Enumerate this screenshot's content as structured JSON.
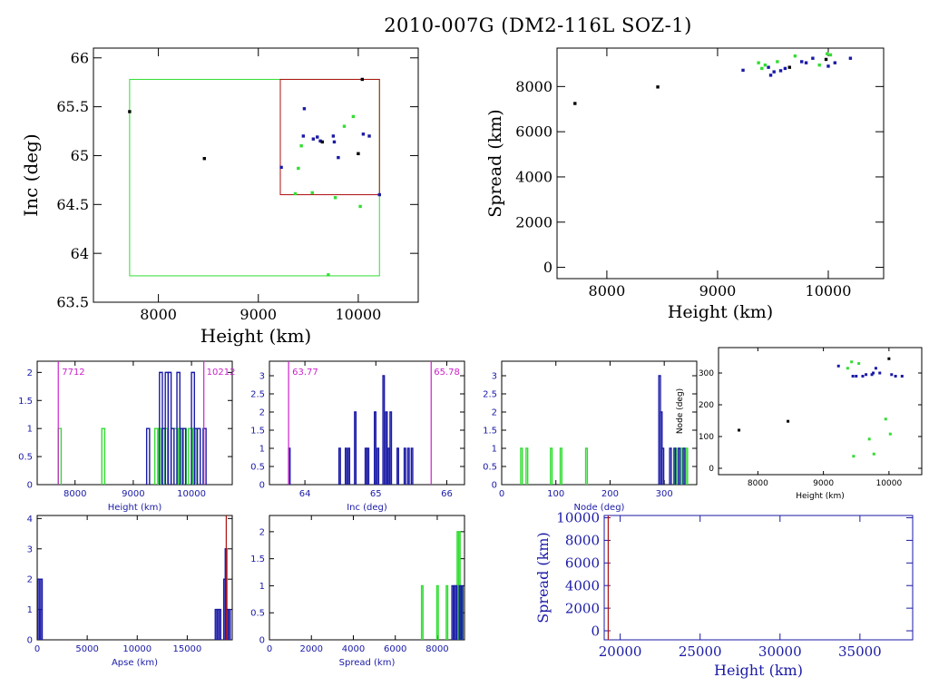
{
  "title": "2010-007G (DM2-116L SOZ-1)",
  "colors": {
    "black": "#000000",
    "blue": "#1a1aa6",
    "green": "#33dd33",
    "red": "#b01010",
    "magenta": "#cc22cc"
  },
  "chart_data": [
    {
      "id": "inc-vs-height",
      "type": "scatter",
      "xlabel": "Height (km)",
      "ylabel": "Inc (deg)",
      "xlim": [
        7350,
        10600
      ],
      "ylim": [
        63.5,
        66.1
      ],
      "xticks": [
        8000,
        9000,
        10000
      ],
      "yticks": [
        63.5,
        64,
        64.5,
        65,
        65.5,
        66
      ],
      "boxes": [
        {
          "color": "green",
          "x": [
            7712,
            10212
          ],
          "y": [
            63.77,
            65.78
          ]
        },
        {
          "color": "red",
          "x": [
            9220,
            10212
          ],
          "y": [
            64.6,
            65.78
          ]
        }
      ],
      "points": [
        [
          7712,
          65.45,
          "black"
        ],
        [
          8460,
          64.97,
          "black"
        ],
        [
          9230,
          64.88,
          "blue"
        ],
        [
          9370,
          64.61,
          "green"
        ],
        [
          9400,
          64.87,
          "green"
        ],
        [
          9430,
          65.1,
          "green"
        ],
        [
          9450,
          65.2,
          "blue"
        ],
        [
          9460,
          65.48,
          "blue"
        ],
        [
          9540,
          64.62,
          "green"
        ],
        [
          9550,
          65.17,
          "blue"
        ],
        [
          9590,
          65.19,
          "blue"
        ],
        [
          9620,
          65.15,
          "blue"
        ],
        [
          9640,
          65.14,
          "black"
        ],
        [
          9700,
          63.78,
          "green"
        ],
        [
          9750,
          65.2,
          "blue"
        ],
        [
          9760,
          65.14,
          "blue"
        ],
        [
          9770,
          64.57,
          "green"
        ],
        [
          9800,
          64.98,
          "blue"
        ],
        [
          9860,
          65.3,
          "green"
        ],
        [
          9950,
          65.4,
          "green"
        ],
        [
          10000,
          65.02,
          "black"
        ],
        [
          10020,
          64.48,
          "green"
        ],
        [
          10040,
          65.78,
          "black"
        ],
        [
          10050,
          65.22,
          "blue"
        ],
        [
          10110,
          65.2,
          "blue"
        ],
        [
          10212,
          64.6,
          "blue"
        ]
      ]
    },
    {
      "id": "spread-vs-height",
      "type": "scatter",
      "xlabel": "Height (km)",
      "ylabel": "Spread (km)",
      "xlim": [
        7550,
        10500
      ],
      "ylim": [
        -500,
        9700
      ],
      "xticks": [
        8000,
        9000,
        10000
      ],
      "yticks": [
        0,
        2000,
        4000,
        6000,
        8000
      ],
      "points": [
        [
          7712,
          7250,
          "black"
        ],
        [
          8460,
          7980,
          "black"
        ],
        [
          9230,
          8720,
          "blue"
        ],
        [
          9370,
          9050,
          "green"
        ],
        [
          9400,
          8800,
          "green"
        ],
        [
          9430,
          8950,
          "green"
        ],
        [
          9460,
          8850,
          "blue"
        ],
        [
          9480,
          8500,
          "blue"
        ],
        [
          9510,
          8650,
          "blue"
        ],
        [
          9540,
          9100,
          "green"
        ],
        [
          9570,
          8700,
          "blue"
        ],
        [
          9610,
          8800,
          "blue"
        ],
        [
          9650,
          8850,
          "black"
        ],
        [
          9700,
          9350,
          "green"
        ],
        [
          9760,
          9100,
          "blue"
        ],
        [
          9800,
          9050,
          "blue"
        ],
        [
          9860,
          9250,
          "blue"
        ],
        [
          9920,
          8950,
          "green"
        ],
        [
          9980,
          9200,
          "black"
        ],
        [
          10000,
          8900,
          "blue"
        ],
        [
          10020,
          9400,
          "green"
        ],
        [
          10060,
          9050,
          "blue"
        ],
        [
          10200,
          9250,
          "blue"
        ],
        [
          9990,
          9450,
          "green"
        ]
      ]
    },
    {
      "id": "hist-height",
      "type": "bar",
      "xlabel": "Height (km)",
      "ylabel": "",
      "xlim": [
        7350,
        10700
      ],
      "ylim": [
        0,
        2.2
      ],
      "xticks": [
        8000,
        9000,
        10000
      ],
      "yticks": [
        0,
        0.5,
        1,
        1.5,
        2
      ],
      "bin_width": 50,
      "vlines": [
        {
          "x": 7712,
          "label": "7712",
          "color": "magenta"
        },
        {
          "x": 10212,
          "label": "10212",
          "color": "magenta"
        }
      ],
      "series": [
        {
          "color": "green",
          "bins": [
            [
              7712,
              1
            ],
            [
              8460,
              1
            ],
            [
              9370,
              1
            ],
            [
              9430,
              1
            ],
            [
              9540,
              1
            ],
            [
              9700,
              1
            ],
            [
              9770,
              1
            ],
            [
              9860,
              1
            ],
            [
              9950,
              1
            ],
            [
              10020,
              1
            ]
          ]
        },
        {
          "color": "blue",
          "bins": [
            [
              9230,
              1
            ],
            [
              9450,
              2
            ],
            [
              9500,
              1
            ],
            [
              9550,
              2
            ],
            [
              9600,
              2
            ],
            [
              9650,
              1
            ],
            [
              9750,
              2
            ],
            [
              9800,
              1
            ],
            [
              9850,
              1
            ],
            [
              10000,
              2
            ],
            [
              10050,
              1
            ],
            [
              10100,
              1
            ],
            [
              10200,
              1
            ]
          ]
        }
      ]
    },
    {
      "id": "hist-inc",
      "type": "bar",
      "xlabel": "Inc (deg)",
      "ylabel": "",
      "xlim": [
        63.5,
        66.25
      ],
      "ylim": [
        0,
        3.4
      ],
      "xticks": [
        64,
        65,
        66
      ],
      "yticks": [
        0,
        0.5,
        1,
        1.5,
        2,
        2.5,
        3
      ],
      "bin_width": 0.02,
      "vlines": [
        {
          "x": 63.77,
          "label": "63.77",
          "color": "magenta"
        },
        {
          "x": 65.78,
          "label": "65.78",
          "color": "magenta"
        }
      ],
      "series": [
        {
          "color": "blue",
          "bins": [
            [
              63.77,
              1
            ],
            [
              64.48,
              1
            ],
            [
              64.57,
              1
            ],
            [
              64.61,
              1
            ],
            [
              64.7,
              2
            ],
            [
              64.85,
              1
            ],
            [
              64.88,
              1
            ],
            [
              64.98,
              2
            ],
            [
              65.02,
              1
            ],
            [
              65.1,
              3
            ],
            [
              65.14,
              2
            ],
            [
              65.17,
              1
            ],
            [
              65.2,
              2
            ],
            [
              65.3,
              1
            ],
            [
              65.4,
              1
            ],
            [
              65.45,
              1
            ],
            [
              65.5,
              1
            ]
          ]
        }
      ]
    },
    {
      "id": "hist-node",
      "type": "bar",
      "xlabel": "Node (deg)",
      "ylabel": "",
      "xlim": [
        0,
        360
      ],
      "ylim": [
        0,
        3.4
      ],
      "xticks": [
        0,
        100,
        200,
        300
      ],
      "yticks": [
        0,
        0.5,
        1,
        1.5,
        2,
        2.5,
        3
      ],
      "bin_width": 3,
      "series": [
        {
          "color": "green",
          "bins": [
            [
              35,
              1
            ],
            [
              45,
              1
            ],
            [
              90,
              1
            ],
            [
              108,
              1
            ],
            [
              155,
              1
            ],
            [
              320,
              1
            ],
            [
              330,
              1
            ],
            [
              340,
              1
            ]
          ]
        },
        {
          "color": "blue",
          "bins": [
            [
              290,
              3
            ],
            [
              293,
              2
            ],
            [
              296,
              1
            ],
            [
              310,
              1
            ],
            [
              318,
              1
            ],
            [
              326,
              1
            ],
            [
              335,
              1
            ]
          ]
        }
      ]
    },
    {
      "id": "node-vs-height",
      "type": "scatter",
      "xlabel": "Height (km)",
      "ylabel": "Node (deg)",
      "xlim": [
        7400,
        10500
      ],
      "ylim": [
        -20,
        380
      ],
      "xticks": [
        8000,
        9000,
        10000
      ],
      "yticks": [
        0,
        100,
        200,
        300
      ],
      "points": [
        [
          7712,
          120,
          "black"
        ],
        [
          8460,
          148,
          "black"
        ],
        [
          9230,
          322,
          "blue"
        ],
        [
          9370,
          315,
          "green"
        ],
        [
          9430,
          335,
          "green"
        ],
        [
          9450,
          290,
          "blue"
        ],
        [
          9460,
          38,
          "green"
        ],
        [
          9500,
          290,
          "blue"
        ],
        [
          9540,
          330,
          "green"
        ],
        [
          9600,
          290,
          "blue"
        ],
        [
          9650,
          295,
          "blue"
        ],
        [
          9700,
          92,
          "green"
        ],
        [
          9760,
          300,
          "blue"
        ],
        [
          9770,
          45,
          "green"
        ],
        [
          9800,
          315,
          "blue"
        ],
        [
          9860,
          300,
          "blue"
        ],
        [
          9950,
          155,
          "green"
        ],
        [
          10000,
          345,
          "black"
        ],
        [
          10020,
          108,
          "green"
        ],
        [
          10040,
          295,
          "blue"
        ],
        [
          10100,
          290,
          "blue"
        ],
        [
          10200,
          290,
          "blue"
        ],
        [
          9740,
          295,
          "blue"
        ]
      ]
    },
    {
      "id": "hist-apse",
      "type": "bar",
      "xlabel": "Apse (km)",
      "ylabel": "",
      "xlim": [
        0,
        19500
      ],
      "ylim": [
        0,
        4.1
      ],
      "xticks": [
        0,
        5000,
        10000,
        15000
      ],
      "yticks": [
        0,
        1,
        2,
        3,
        4
      ],
      "bin_width": 150,
      "vlines": [
        {
          "x": 18900,
          "label": "",
          "color": "red"
        }
      ],
      "series": [
        {
          "color": "blue",
          "bins": [
            [
              50,
              2
            ],
            [
              200,
              1
            ],
            [
              350,
              2
            ],
            [
              17800,
              1
            ],
            [
              18000,
              1
            ],
            [
              18200,
              1
            ],
            [
              18650,
              2
            ],
            [
              18800,
              3
            ],
            [
              18950,
              1
            ],
            [
              19150,
              1
            ]
          ]
        }
      ]
    },
    {
      "id": "hist-spread",
      "type": "bar",
      "xlabel": "Spread (km)",
      "ylabel": "",
      "xlim": [
        0,
        9300
      ],
      "ylim": [
        0,
        2.3
      ],
      "xticks": [
        0,
        2000,
        4000,
        6000,
        8000
      ],
      "yticks": [
        0,
        0.5,
        1,
        1.5,
        2
      ],
      "bin_width": 70,
      "series": [
        {
          "color": "green",
          "bins": [
            [
              7250,
              1
            ],
            [
              7980,
              1
            ],
            [
              8430,
              1
            ],
            [
              8950,
              2
            ],
            [
              9020,
              2
            ],
            [
              9100,
              1
            ]
          ]
        },
        {
          "color": "blue",
          "bins": [
            [
              8700,
              1
            ],
            [
              8800,
              1
            ],
            [
              8870,
              1
            ],
            [
              9050,
              1
            ],
            [
              9150,
              1
            ]
          ]
        }
      ]
    },
    {
      "id": "spread-vs-height-wide",
      "type": "scatter",
      "xlabel": "Height (km)",
      "ylabel": "Spread (km)",
      "xlim": [
        19000,
        38300
      ],
      "ylim": [
        -800,
        10200
      ],
      "xticks": [
        20000,
        25000,
        30000,
        35000
      ],
      "yticks": [
        0,
        2000,
        4000,
        6000,
        8000,
        10000
      ],
      "vlines": [
        {
          "x": 19250,
          "label": "",
          "color": "red"
        }
      ],
      "points": []
    }
  ]
}
